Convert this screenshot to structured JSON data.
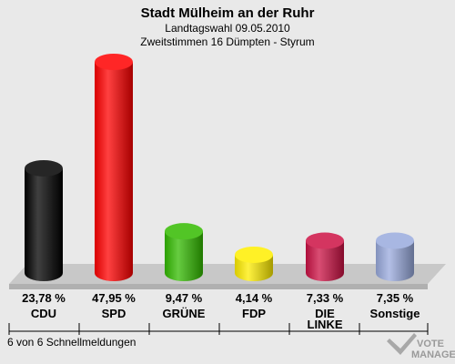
{
  "header": {
    "title": "Stadt Mülheim an der Ruhr",
    "subtitle1": "Landtagswahl 09.05.2010",
    "subtitle2": "Zweitstimmen 16 Dümpten - Styrum"
  },
  "footer": {
    "status": "6 von 6 Schnellmeldungen"
  },
  "watermark": {
    "line1": "VOTE",
    "line2": "MANAGER"
  },
  "chart_data": {
    "type": "bar",
    "title": "Stadt Mülheim an der Ruhr",
    "categories": [
      "CDU",
      "SPD",
      "GRÜNE",
      "FDP",
      "DIE LINKE",
      "Sonstige"
    ],
    "category_lines": [
      [
        "CDU"
      ],
      [
        "SPD"
      ],
      [
        "GRÜNE"
      ],
      [
        "FDP"
      ],
      [
        "DIE",
        "LINKE"
      ],
      [
        "Sonstige"
      ]
    ],
    "values": [
      23.78,
      47.95,
      9.47,
      4.14,
      7.33,
      7.35
    ],
    "labels": [
      "23,78 %",
      "47,95 %",
      "9,47 %",
      "4,14 %",
      "7,33 %",
      "7,35 %"
    ],
    "colors": [
      "#000000",
      "#ff0000",
      "#33bb00",
      "#ffee00",
      "#cc1144",
      "#99aadd"
    ],
    "unit": "%",
    "grid": false,
    "legend": "none"
  }
}
